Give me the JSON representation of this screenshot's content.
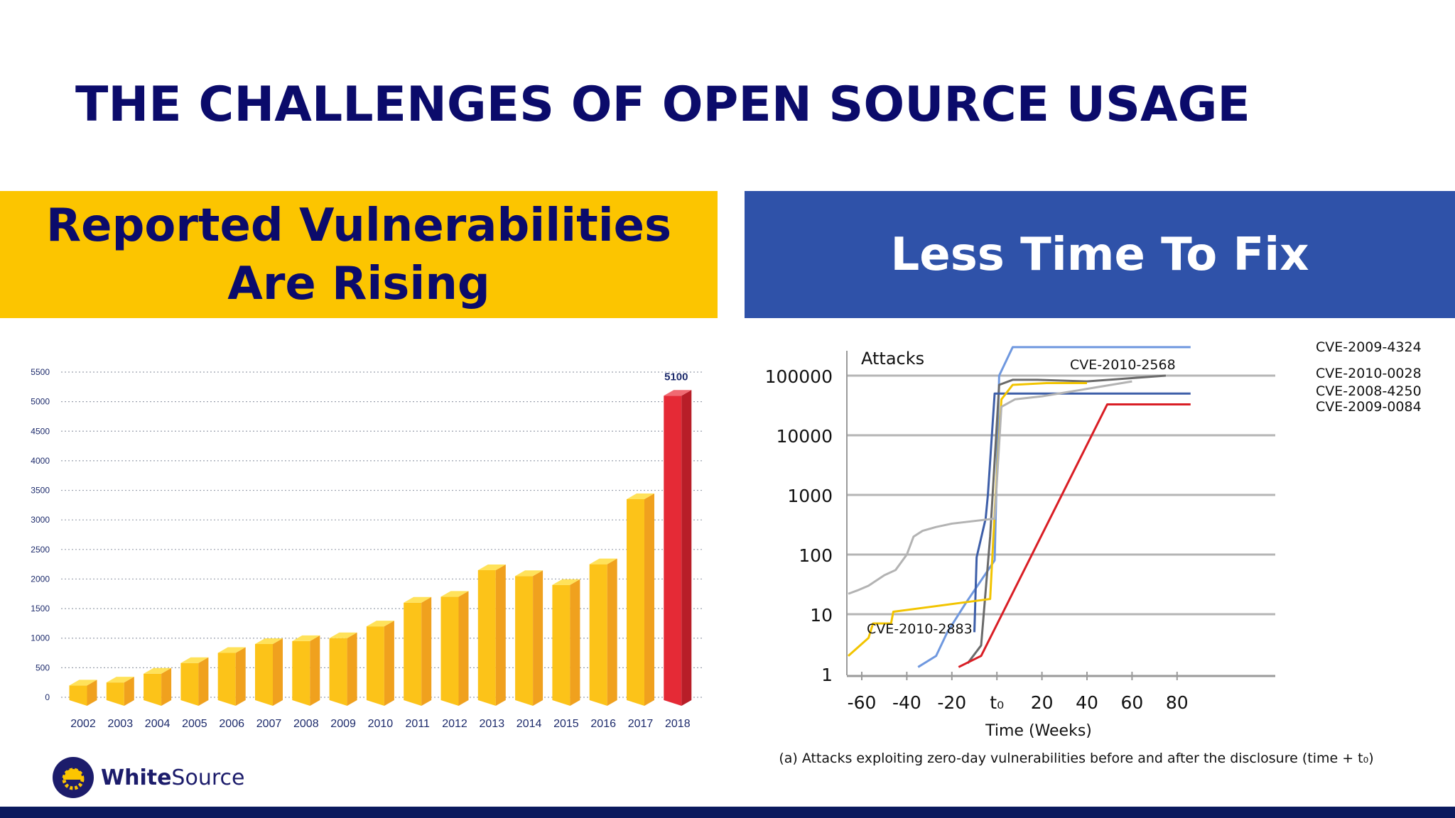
{
  "slide": {
    "title": "THE CHALLENGES OF OPEN SOURCE USAGE",
    "left_header_line1": "Reported Vulnerabilities",
    "left_header_line2": "Are Rising",
    "right_header": "Less Time To Fix",
    "logo_bold": "White",
    "logo_light": "Source",
    "caption": "(a) Attacks exploiting zero-day vulnerabilities before and after the disclosure (time + t₀)"
  },
  "colors": {
    "title": "#0b0b6b",
    "yellow": "#fcc500",
    "blue": "#2f52a9",
    "navy_bar": "#0b1a5e",
    "bar_yellow": "#f5b51a",
    "bar_red": "#e52a36"
  },
  "icons": {
    "logo": "hardhat-gear-icon"
  },
  "chart_data": [
    {
      "type": "bar",
      "categories": [
        "2002",
        "2003",
        "2004",
        "2005",
        "2006",
        "2007",
        "2008",
        "2009",
        "2010",
        "2011",
        "2012",
        "2013",
        "2014",
        "2015",
        "2016",
        "2017",
        "2018"
      ],
      "values": [
        200,
        250,
        400,
        580,
        750,
        900,
        950,
        1000,
        1200,
        1600,
        1700,
        2150,
        2050,
        1900,
        2250,
        3350,
        5100
      ],
      "yticks": [
        0,
        500,
        1000,
        1500,
        2000,
        2500,
        3000,
        3500,
        4000,
        4500,
        5000,
        5500
      ],
      "ylim": [
        0,
        5500
      ],
      "data_labels": [
        {
          "category": "2018",
          "text": "5100"
        }
      ],
      "highlight": "2018",
      "grid": "dotted horizontal"
    },
    {
      "type": "line",
      "yscale": "log",
      "ylabel": "Attacks",
      "xlabel": "Time (Weeks)",
      "yticks": [
        1,
        10,
        100,
        1000,
        10000,
        100000
      ],
      "ytick_labels": [
        "1",
        "10",
        "100",
        "1000",
        "10000",
        "100000"
      ],
      "xticks": [
        -60,
        -40,
        -20,
        0,
        20,
        40,
        60,
        80
      ],
      "xtick_labels": [
        "-60",
        "-40",
        "-20",
        "t₀",
        "20",
        "40",
        "60",
        "80"
      ],
      "xlim": [
        -66,
        86
      ],
      "ylim": [
        0.9,
        300000
      ],
      "grid": "horizontal",
      "series": [
        {
          "name": "CVE-2009-4324",
          "color": "#6f98df",
          "x": [
            -35,
            -27,
            -22,
            -14,
            -1,
            1,
            7,
            86
          ],
          "y": [
            1.3,
            2,
            5,
            15,
            80,
            100000,
            300000,
            300000
          ]
        },
        {
          "name": "CVE-2010-0028",
          "color": "#6a6a6a",
          "x": [
            -13,
            -7,
            -3,
            1,
            7,
            18,
            40,
            75
          ],
          "y": [
            1.5,
            3,
            200,
            70000,
            85000,
            85000,
            80000,
            100000
          ]
        },
        {
          "name": "CVE-2008-4250",
          "color": "#3d5ea8",
          "x": [
            -10,
            -9,
            -5,
            -4,
            -1,
            86
          ],
          "y": [
            5,
            90,
            400,
            1000,
            50000,
            50000
          ]
        },
        {
          "name": "CVE-2009-0084",
          "color": "#d91e25",
          "x": [
            -17,
            -7,
            49,
            86
          ],
          "y": [
            1.3,
            2,
            33000,
            33000
          ]
        },
        {
          "name": "CVE-2010-2883",
          "color": "#f2c400",
          "x": [
            -66,
            -57,
            -55,
            -47,
            -46,
            -3,
            -1,
            2,
            7,
            22,
            40
          ],
          "y": [
            2,
            4,
            7,
            7,
            11,
            18,
            500,
            40000,
            70000,
            75000,
            75000
          ]
        },
        {
          "name": "CVE-2010-2568",
          "color": "#b3b3b3",
          "x": [
            -66,
            -62,
            -57,
            -50,
            -45,
            -40,
            -37,
            -33,
            -27,
            -20,
            -1,
            2,
            8,
            20,
            40,
            60
          ],
          "y": [
            22,
            25,
            30,
            45,
            55,
            100,
            200,
            250,
            290,
            330,
            400,
            30000,
            40000,
            45000,
            60000,
            80000
          ]
        }
      ],
      "series_labels": [
        {
          "name": "CVE-2009-4324",
          "placement": "right"
        },
        {
          "name": "CVE-2010-0028",
          "placement": "right"
        },
        {
          "name": "CVE-2008-4250",
          "placement": "right"
        },
        {
          "name": "CVE-2009-0084",
          "placement": "right"
        },
        {
          "name": "CVE-2010-2568",
          "placement": "inside-top"
        },
        {
          "name": "CVE-2010-2883",
          "placement": "inside-bottom-left"
        }
      ]
    }
  ]
}
